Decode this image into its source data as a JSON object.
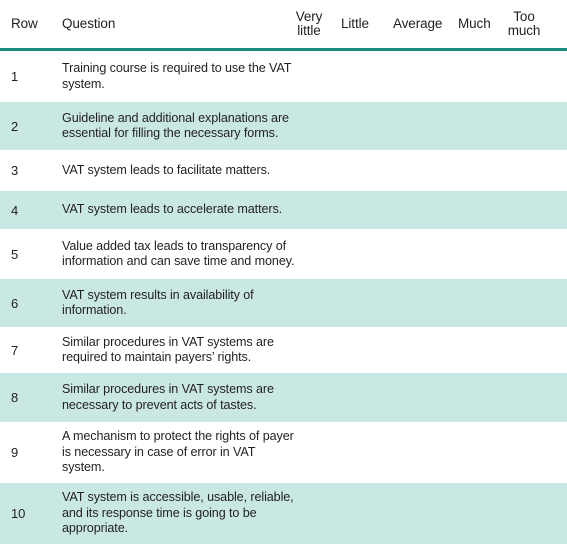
{
  "header": {
    "row": "Row",
    "question": "Question",
    "very_little_1": "Very",
    "very_little_2": "little",
    "little": "Little",
    "average": "Average",
    "much": "Much",
    "too_much_1": "Too",
    "too_much_2": "much"
  },
  "rows": [
    {
      "num": "1",
      "question": "Training course is required to use the VAT system."
    },
    {
      "num": "2",
      "question": "Guideline and additional explanations are essential for filling the necessary forms."
    },
    {
      "num": "3",
      "question": "VAT system leads to facilitate matters."
    },
    {
      "num": "4",
      "question": "VAT system leads to accelerate matters."
    },
    {
      "num": "5",
      "question": "Value added tax leads to transparency of information and can save time and money."
    },
    {
      "num": "6",
      "question": "VAT system results in availability of information."
    },
    {
      "num": "7",
      "question": "Similar procedures in VAT systems are required to maintain payers’ rights."
    },
    {
      "num": "8",
      "question": "Similar procedures in VAT systems are necessary to prevent acts of tastes."
    },
    {
      "num": "9",
      "question": "A mechanism to protect the rights of payer is necessary in case of error in VAT system."
    },
    {
      "num": "10",
      "question": "VAT system is accessible, usable, reliable, and its response time is going to be appropriate."
    }
  ]
}
